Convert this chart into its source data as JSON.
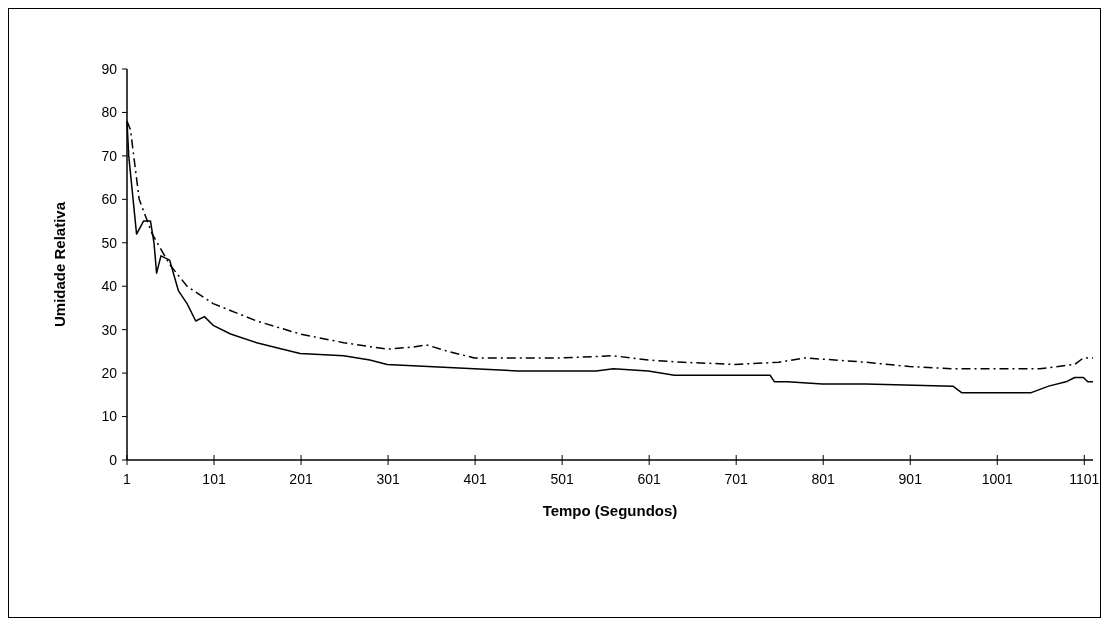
{
  "chart_data": {
    "type": "line",
    "xlabel": "Tempo (Segundos)",
    "ylabel": "Umidade Relativa",
    "xlim": [
      1,
      1111
    ],
    "xticks": [
      1,
      101,
      201,
      301,
      401,
      501,
      601,
      701,
      801,
      901,
      1001,
      1101
    ],
    "ylim": [
      0,
      90
    ],
    "yticks": [
      0,
      10,
      20,
      30,
      40,
      50,
      60,
      70,
      80,
      90
    ],
    "grid": false,
    "series": [
      {
        "color": "#000000",
        "line_style": "dashed",
        "x": [
          1,
          5,
          15,
          30,
          50,
          70,
          100,
          150,
          200,
          250,
          300,
          330,
          345,
          370,
          400,
          500,
          560,
          600,
          640,
          700,
          750,
          780,
          850,
          900,
          950,
          1050,
          1090,
          1100,
          1111
        ],
        "values": [
          78,
          76,
          60,
          52,
          45,
          40,
          36,
          32,
          29,
          27,
          25.5,
          26,
          26.5,
          25,
          23.5,
          23.5,
          24,
          23,
          22.5,
          22,
          22.5,
          23.5,
          22.5,
          21.5,
          21,
          21,
          22,
          23.5,
          23.5
        ]
      },
      {
        "color": "#000000",
        "line_style": "solid",
        "x": [
          1,
          3,
          8,
          12,
          20,
          28,
          32,
          35,
          40,
          50,
          60,
          70,
          80,
          90,
          100,
          120,
          150,
          180,
          200,
          250,
          280,
          300,
          400,
          450,
          540,
          560,
          600,
          630,
          740,
          745,
          760,
          800,
          850,
          950,
          960,
          1040,
          1060,
          1080,
          1090,
          1100,
          1105,
          1111
        ],
        "values": [
          78,
          70,
          60,
          52,
          55,
          55,
          50,
          43,
          47,
          46,
          39,
          36,
          32,
          33,
          31,
          29,
          27,
          25.5,
          24.5,
          24,
          23,
          22,
          21,
          20.5,
          20.5,
          21,
          20.5,
          19.5,
          19.5,
          18,
          18,
          17.5,
          17.5,
          17,
          15.5,
          15.5,
          17,
          18,
          19,
          19,
          18,
          18
        ]
      }
    ]
  }
}
